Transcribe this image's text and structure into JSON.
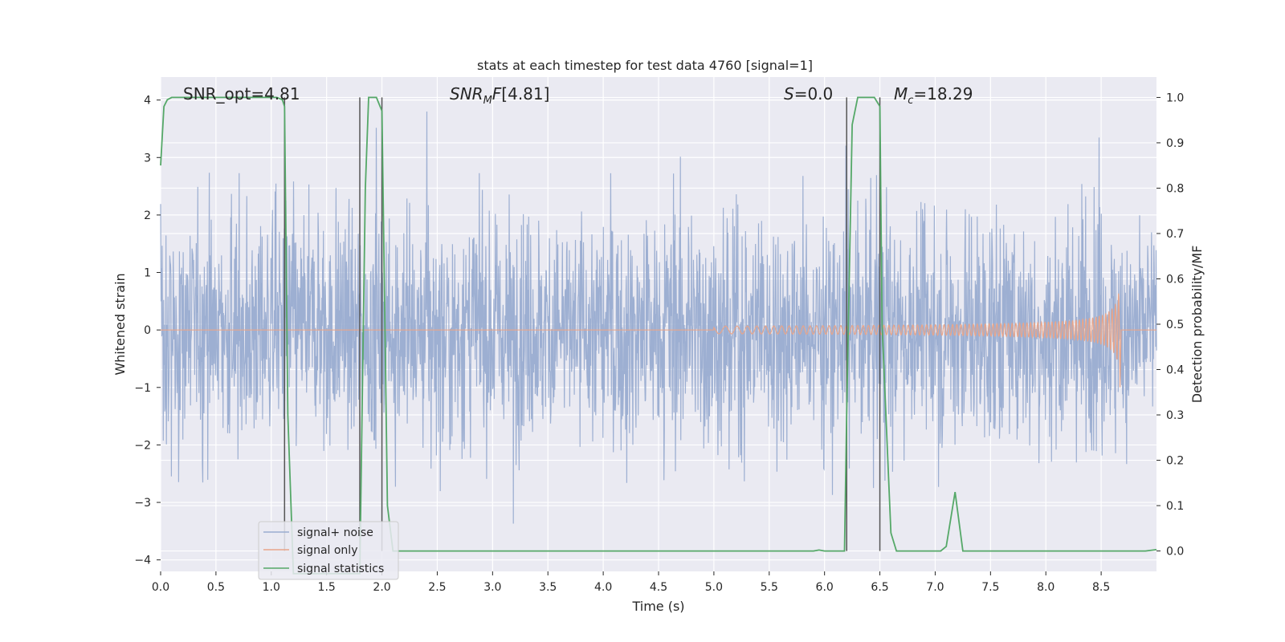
{
  "chart_data": {
    "type": "line",
    "title": "stats at each timestep for test data 4760 [signal=1]",
    "xlabel": "Time (s)",
    "ylabel": "Whitened strain",
    "y2label": "Detection probability/MF",
    "xlim": [
      0.0,
      9.0
    ],
    "ylim": [
      -4.2,
      4.4
    ],
    "y2lim": [
      -0.045,
      1.045
    ],
    "xticks": [
      "0.0",
      "0.5",
      "1.0",
      "1.5",
      "2.0",
      "2.5",
      "3.0",
      "3.5",
      "4.0",
      "4.5",
      "5.0",
      "5.5",
      "6.0",
      "6.5",
      "7.0",
      "7.5",
      "8.0",
      "8.5"
    ],
    "yticks": [
      "4",
      "3",
      "2",
      "1",
      "0",
      "−1",
      "−2",
      "−3",
      "−4"
    ],
    "y2ticks": [
      "1.0",
      "0.9",
      "0.8",
      "0.7",
      "0.6",
      "0.5",
      "0.4",
      "0.3",
      "0.2",
      "0.1",
      "0.0"
    ],
    "grid": true,
    "legend_position": "lower-left",
    "annotations": {
      "snr_opt": "SNR_opt=4.81",
      "snr_mf": "[4.81]",
      "stat": "=0.0",
      "mc": "=18.29"
    },
    "series": [
      {
        "name": "signal+ noise",
        "color": "#99acd0",
        "description_values": "noise-like, amplitude mostly within [-2.4, 2.4], peaks near 3.8 and -3.6",
        "envelope_max": 3.8,
        "envelope_min": -3.6
      },
      {
        "name": "signal only",
        "color": "#e8a58a",
        "chirp_start_time": 5.0,
        "chirp_end_time": 8.67,
        "chirp_peak_amplitude": 0.9
      },
      {
        "name": "signal statistics",
        "color": "#55a868",
        "axis": "right",
        "x": [
          0.0,
          0.03,
          0.06,
          0.1,
          1.05,
          1.1,
          1.12,
          1.15,
          1.2,
          1.8,
          1.82,
          1.85,
          1.88,
          1.95,
          2.0,
          2.05,
          2.1,
          5.9,
          5.95,
          6.0,
          6.18,
          6.2,
          6.25,
          6.3,
          6.45,
          6.5,
          6.52,
          6.6,
          6.65,
          7.05,
          7.1,
          7.18,
          7.25,
          8.9,
          9.0
        ],
        "values": [
          0.85,
          0.98,
          0.995,
          1.0,
          1.0,
          0.995,
          0.98,
          0.3,
          -0.05,
          -0.05,
          0.3,
          0.8,
          1.0,
          1.0,
          0.97,
          0.1,
          0.0,
          0.0,
          0.002,
          0.0,
          0.0,
          0.3,
          0.94,
          1.0,
          1.0,
          0.98,
          0.5,
          0.04,
          0.0,
          0.0,
          0.01,
          0.13,
          0.0,
          0.0,
          0.003
        ]
      }
    ],
    "vertical_lines": [
      1.12,
      1.8,
      2.0,
      6.2,
      6.5
    ]
  }
}
